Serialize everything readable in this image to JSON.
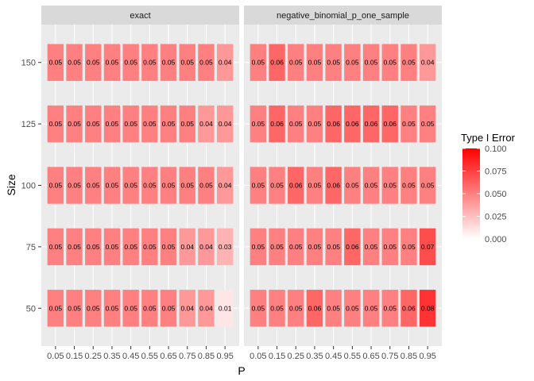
{
  "colors": {
    "panel_bg": "#ebebeb",
    "strip_bg": "#d9d9d9",
    "grid": "#ffffff",
    "low": "#ffffff",
    "high": "#ff0000"
  },
  "chart_data": {
    "type": "heatmap",
    "xlabel": "P",
    "ylabel": "Size",
    "x": [
      "0.05",
      "0.15",
      "0.25",
      "0.35",
      "0.45",
      "0.55",
      "0.65",
      "0.75",
      "0.85",
      "0.95"
    ],
    "y": [
      "50",
      "75",
      "100",
      "125",
      "150"
    ],
    "legend": {
      "title": "Type I Error",
      "position": "right",
      "limits": [
        0,
        0.1
      ],
      "ticks": [
        "0.000",
        "0.025",
        "0.050",
        "0.075",
        "0.100"
      ]
    },
    "panels": [
      {
        "name": "exact",
        "values": {
          "50": [
            "0.05",
            "0.05",
            "0.05",
            "0.05",
            "0.05",
            "0.05",
            "0.05",
            "0.04",
            "0.04",
            "0.01"
          ],
          "75": [
            "0.05",
            "0.05",
            "0.05",
            "0.05",
            "0.05",
            "0.05",
            "0.05",
            "0.04",
            "0.04",
            "0.03"
          ],
          "100": [
            "0.05",
            "0.05",
            "0.05",
            "0.05",
            "0.05",
            "0.05",
            "0.05",
            "0.05",
            "0.05",
            "0.04"
          ],
          "125": [
            "0.05",
            "0.05",
            "0.05",
            "0.05",
            "0.05",
            "0.05",
            "0.05",
            "0.05",
            "0.04",
            "0.04"
          ],
          "150": [
            "0.05",
            "0.05",
            "0.05",
            "0.05",
            "0.05",
            "0.05",
            "0.05",
            "0.05",
            "0.05",
            "0.04"
          ]
        }
      },
      {
        "name": "negative_binomial_p_one_sample",
        "values": {
          "50": [
            "0.05",
            "0.05",
            "0.05",
            "0.06",
            "0.05",
            "0.05",
            "0.05",
            "0.05",
            "0.06",
            "0.08"
          ],
          "75": [
            "0.05",
            "0.05",
            "0.05",
            "0.05",
            "0.05",
            "0.06",
            "0.05",
            "0.05",
            "0.05",
            "0.07"
          ],
          "100": [
            "0.05",
            "0.05",
            "0.06",
            "0.05",
            "0.06",
            "0.05",
            "0.05",
            "0.05",
            "0.05",
            "0.05"
          ],
          "125": [
            "0.05",
            "0.06",
            "0.05",
            "0.05",
            "0.06",
            "0.06",
            "0.06",
            "0.06",
            "0.05",
            "0.05"
          ],
          "150": [
            "0.05",
            "0.06",
            "0.05",
            "0.05",
            "0.05",
            "0.05",
            "0.05",
            "0.05",
            "0.05",
            "0.04"
          ]
        }
      }
    ]
  }
}
